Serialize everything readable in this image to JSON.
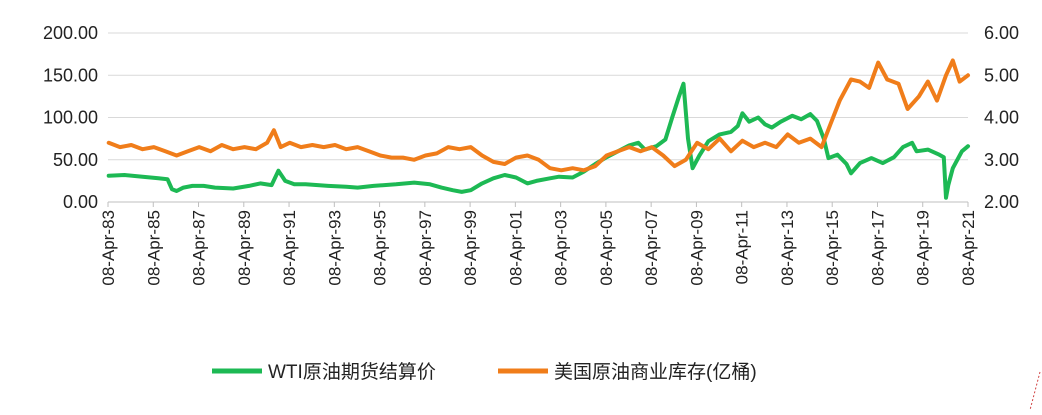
{
  "chart_data": {
    "type": "line",
    "title": "",
    "xlabel": "",
    "ylabel_left": "",
    "ylabel_right": "",
    "grid": true,
    "legend_position": "bottom",
    "x_ticks": [
      "08-Apr-83",
      "08-Apr-85",
      "08-Apr-87",
      "08-Apr-89",
      "08-Apr-91",
      "08-Apr-93",
      "08-Apr-95",
      "08-Apr-97",
      "08-Apr-99",
      "08-Apr-01",
      "08-Apr-03",
      "08-Apr-05",
      "08-Apr-07",
      "08-Apr-09",
      "08-Apr-11",
      "08-Apr-13",
      "08-Apr-15",
      "08-Apr-17",
      "08-Apr-19",
      "08-Apr-21"
    ],
    "xlim": [
      1983.27,
      2021.27
    ],
    "y_left": {
      "lim": [
        0,
        200
      ],
      "ticks": [
        "0.00",
        "50.00",
        "100.00",
        "150.00",
        "200.00"
      ]
    },
    "y_right": {
      "lim": [
        2,
        6
      ],
      "ticks": [
        "2.00",
        "3.00",
        "4.00",
        "5.00",
        "6.00"
      ]
    },
    "series": [
      {
        "name": "WTI原油期货结算价",
        "axis": "left",
        "color": "#1db954",
        "x": [
          1983.3,
          1984,
          1984.8,
          1985.5,
          1985.9,
          1986.1,
          1986.3,
          1986.6,
          1987,
          1987.5,
          1988,
          1988.8,
          1989.5,
          1990,
          1990.5,
          1990.8,
          1991.1,
          1991.5,
          1992,
          1993,
          1993.8,
          1994.3,
          1995,
          1996,
          1996.8,
          1997.5,
          1998,
          1998.5,
          1998.9,
          1999.3,
          1999.8,
          2000.3,
          2000.8,
          2001.3,
          2001.8,
          2002.2,
          2002.8,
          2003.2,
          2003.8,
          2004.3,
          2004.8,
          2005.3,
          2005.8,
          2006.3,
          2006.7,
          2007,
          2007.5,
          2007.9,
          2008.2,
          2008.5,
          2008.7,
          2008.9,
          2009.1,
          2009.4,
          2009.8,
          2010.3,
          2010.8,
          2011.1,
          2011.3,
          2011.6,
          2012,
          2012.3,
          2012.6,
          2013,
          2013.5,
          2013.9,
          2014.3,
          2014.6,
          2014.9,
          2015.1,
          2015.5,
          2015.9,
          2016.1,
          2016.5,
          2017,
          2017.5,
          2018,
          2018.4,
          2018.8,
          2019,
          2019.5,
          2020,
          2020.2,
          2020.3,
          2020.4,
          2020.6,
          2021,
          2021.27
        ],
        "values": [
          31,
          32,
          30,
          28,
          27,
          15,
          13,
          17,
          19,
          19,
          17,
          16,
          19,
          22,
          20,
          37,
          25,
          21,
          21,
          19,
          18,
          17,
          19,
          21,
          23,
          21,
          17,
          14,
          12,
          14,
          22,
          28,
          32,
          29,
          22,
          25,
          28,
          30,
          29,
          36,
          45,
          53,
          60,
          67,
          70,
          62,
          66,
          74,
          100,
          125,
          140,
          75,
          40,
          55,
          72,
          80,
          83,
          90,
          105,
          95,
          100,
          92,
          88,
          95,
          102,
          98,
          104,
          96,
          75,
          52,
          56,
          45,
          34,
          46,
          52,
          46,
          53,
          65,
          70,
          60,
          62,
          56,
          53,
          5,
          20,
          40,
          60,
          66
        ]
      },
      {
        "name": "美国原油商业库存(亿桶)",
        "axis": "right",
        "color": "#f07d1a",
        "x": [
          1983.3,
          1983.8,
          1984.3,
          1984.8,
          1985.3,
          1985.8,
          1986.3,
          1986.8,
          1987.3,
          1987.8,
          1988.3,
          1988.8,
          1989.3,
          1989.8,
          1990.3,
          1990.6,
          1990.9,
          1991.3,
          1991.8,
          1992.3,
          1992.8,
          1993.3,
          1993.8,
          1994.3,
          1994.8,
          1995.3,
          1995.8,
          1996.3,
          1996.8,
          1997.3,
          1997.8,
          1998.3,
          1998.8,
          1999.3,
          1999.8,
          2000.3,
          2000.8,
          2001.3,
          2001.8,
          2002.3,
          2002.8,
          2003.3,
          2003.8,
          2004.3,
          2004.8,
          2005.3,
          2005.8,
          2006.3,
          2006.8,
          2007.3,
          2007.8,
          2008.3,
          2008.8,
          2009.3,
          2009.8,
          2010.3,
          2010.8,
          2011.3,
          2011.8,
          2012.3,
          2012.8,
          2013.3,
          2013.8,
          2014.3,
          2014.8,
          2015.2,
          2015.6,
          2016.1,
          2016.5,
          2016.9,
          2017.3,
          2017.7,
          2018.2,
          2018.6,
          2019.1,
          2019.5,
          2019.9,
          2020.3,
          2020.6,
          2020.9,
          2021.27
        ],
        "values": [
          3.4,
          3.3,
          3.35,
          3.25,
          3.3,
          3.2,
          3.1,
          3.2,
          3.3,
          3.2,
          3.35,
          3.25,
          3.3,
          3.25,
          3.4,
          3.7,
          3.3,
          3.4,
          3.3,
          3.35,
          3.3,
          3.35,
          3.25,
          3.3,
          3.2,
          3.1,
          3.05,
          3.05,
          3.0,
          3.1,
          3.15,
          3.3,
          3.25,
          3.3,
          3.1,
          2.95,
          2.9,
          3.05,
          3.1,
          3.0,
          2.8,
          2.75,
          2.8,
          2.75,
          2.85,
          3.1,
          3.2,
          3.3,
          3.2,
          3.3,
          3.1,
          2.85,
          3.0,
          3.4,
          3.25,
          3.5,
          3.2,
          3.45,
          3.3,
          3.4,
          3.3,
          3.6,
          3.4,
          3.5,
          3.3,
          3.85,
          4.4,
          4.9,
          4.85,
          4.7,
          5.3,
          4.9,
          4.8,
          4.2,
          4.5,
          4.85,
          4.4,
          5.0,
          5.35,
          4.85,
          5.0
        ]
      }
    ]
  }
}
